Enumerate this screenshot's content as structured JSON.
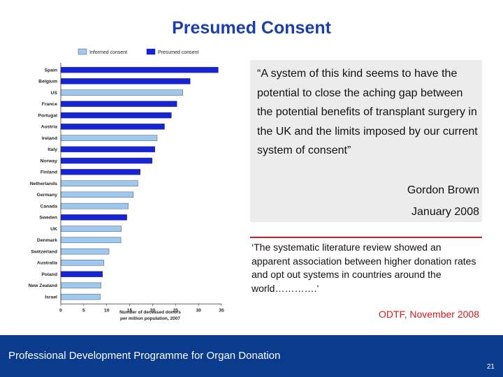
{
  "slide": {
    "title": "Presumed Consent",
    "quote": "“A system of this kind seems to have the potential to close the aching gap between the potential benefits of transplant surgery in the UK and the limits imposed by our current system of consent”",
    "quote_author": "Gordon Brown",
    "quote_date": "January 2008",
    "quote2": "‘The systematic literature review showed an apparent association between higher donation rates and opt out systems in countries around the world………….’",
    "quote2_source": "ODTF, November 2008",
    "footer": "Professional Development Programme for Organ Donation",
    "page_number": "21"
  },
  "chart_data": {
    "type": "bar",
    "orientation": "horizontal",
    "categories": [
      "Spain",
      "Belgium",
      "US",
      "France",
      "Portugal",
      "Austria",
      "Ireland",
      "Italy",
      "Norway",
      "Finland",
      "Netherlands",
      "Germany",
      "Canada",
      "Sweden",
      "UK",
      "Denmark",
      "Switzerland",
      "Australia",
      "Poland",
      "New Zealand",
      "Israel"
    ],
    "values": [
      34.3,
      28.2,
      26.6,
      25.3,
      24.1,
      22.6,
      21.0,
      20.5,
      19.9,
      17.3,
      16.8,
      15.8,
      14.7,
      14.4,
      13.2,
      13.1,
      10.5,
      9.4,
      9.1,
      8.8,
      8.6
    ],
    "consent": [
      "presumed",
      "presumed",
      "informed",
      "presumed",
      "presumed",
      "presumed",
      "informed",
      "presumed",
      "presumed",
      "presumed",
      "informed",
      "informed",
      "informed",
      "presumed",
      "informed",
      "informed",
      "informed",
      "informed",
      "presumed",
      "informed",
      "informed"
    ],
    "legend": [
      {
        "key": "informed",
        "label": "Informed consent",
        "color": "#9ec8ee"
      },
      {
        "key": "presumed",
        "label": "Presumed consent",
        "color": "#1624d8"
      }
    ],
    "xlabel": "Number of deceased donors\nper million population, 2007",
    "xticks": [
      0,
      5,
      10,
      15,
      20,
      25,
      30,
      35
    ],
    "xlim": [
      0,
      35
    ],
    "legend_position": "top"
  }
}
